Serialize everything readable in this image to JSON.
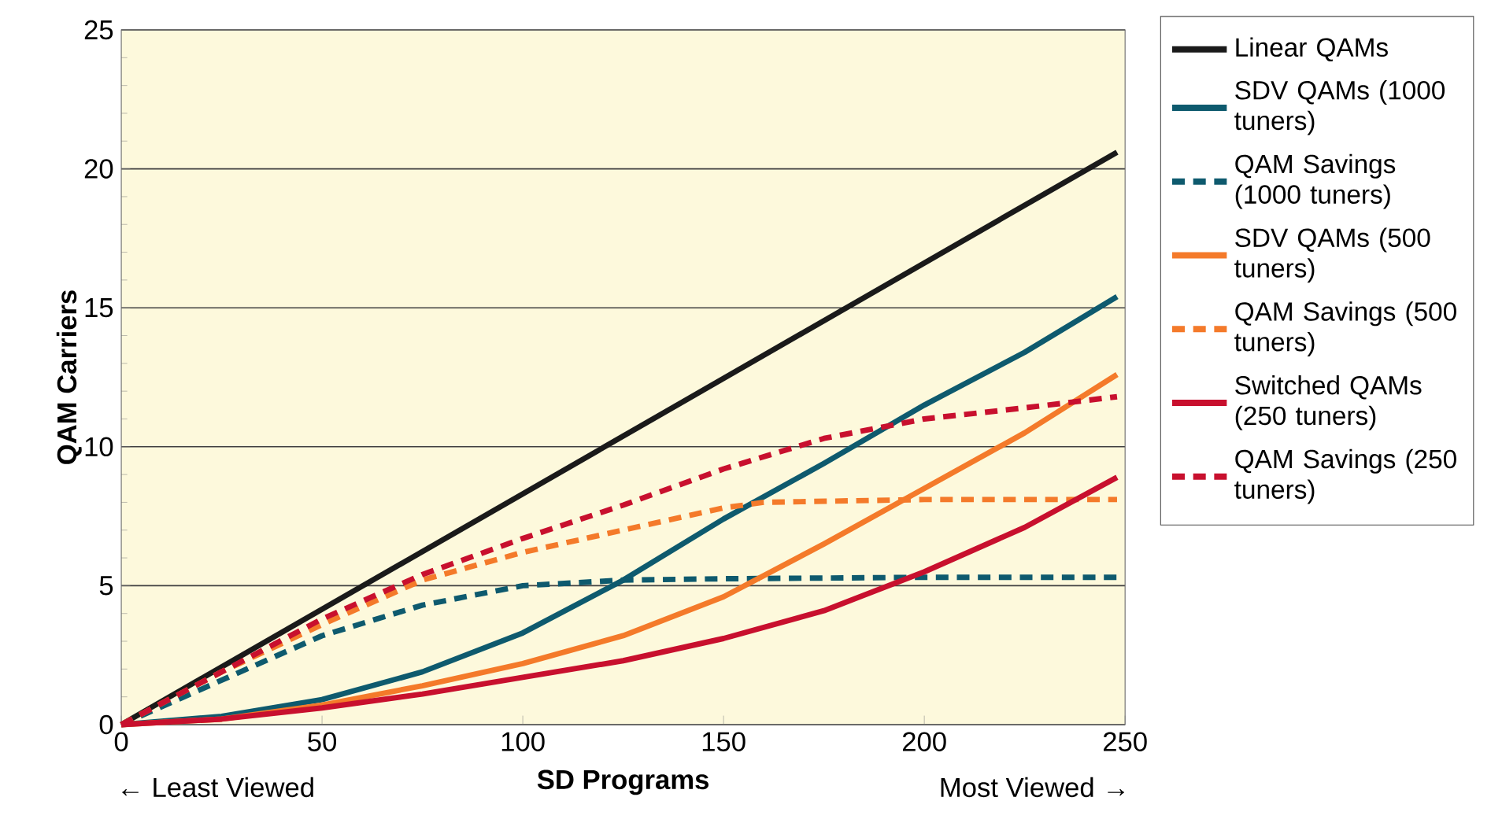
{
  "chart_data": {
    "type": "line",
    "xlabel": "SD Programs",
    "ylabel": "QAM Carriers",
    "annotations": [
      "← Least Viewed",
      "Most Viewed →"
    ],
    "xlim": [
      0,
      250
    ],
    "ylim": [
      0,
      25
    ],
    "xticks": [
      0,
      50,
      100,
      150,
      200,
      250
    ],
    "yticks": [
      0,
      5,
      10,
      15,
      20,
      25
    ],
    "grid": "y",
    "legend": "right",
    "marker": "none",
    "series": [
      {
        "name": "Linear QAMs",
        "color": "#1a1a1a",
        "line_style": "solid",
        "x": [
          0,
          248
        ],
        "values": [
          0,
          20.6
        ]
      },
      {
        "name": "SDV QAMs (1000 tuners)",
        "color": "#0e5a6e",
        "line_style": "solid",
        "x": [
          0,
          25,
          50,
          75,
          100,
          125,
          150,
          175,
          200,
          225,
          248
        ],
        "values": [
          0,
          0.3,
          0.9,
          1.9,
          3.3,
          5.2,
          7.4,
          9.4,
          11.5,
          13.4,
          15.4
        ]
      },
      {
        "name": "QAM Savings (1000 tuners)",
        "color": "#0e5a6e",
        "line_style": "dashed",
        "x": [
          0,
          25,
          50,
          75,
          100,
          125,
          150,
          200,
          248
        ],
        "values": [
          0,
          1.6,
          3.2,
          4.3,
          5.0,
          5.2,
          5.25,
          5.3,
          5.3
        ]
      },
      {
        "name": "SDV QAMs (500 tuners)",
        "color": "#f47a2a",
        "line_style": "solid",
        "x": [
          0,
          25,
          50,
          75,
          100,
          125,
          150,
          175,
          200,
          225,
          248
        ],
        "values": [
          0,
          0.2,
          0.7,
          1.4,
          2.2,
          3.2,
          4.6,
          6.5,
          8.5,
          10.5,
          12.6
        ]
      },
      {
        "name": "QAM Savings (500 tuners)",
        "color": "#f47a2a",
        "line_style": "dashed",
        "x": [
          0,
          25,
          50,
          75,
          100,
          125,
          150,
          160,
          200,
          248
        ],
        "values": [
          0,
          1.9,
          3.6,
          5.2,
          6.2,
          7.0,
          7.8,
          8.0,
          8.1,
          8.1
        ]
      },
      {
        "name": "Switched QAMs (250 tuners)",
        "color": "#c8102e",
        "line_style": "solid",
        "x": [
          0,
          25,
          50,
          75,
          100,
          125,
          150,
          175,
          200,
          225,
          248
        ],
        "values": [
          0,
          0.2,
          0.6,
          1.1,
          1.7,
          2.3,
          3.1,
          4.1,
          5.5,
          7.1,
          8.9
        ]
      },
      {
        "name": "QAM Savings (250 tuners)",
        "color": "#c8102e",
        "line_style": "dashed",
        "x": [
          0,
          25,
          50,
          75,
          100,
          125,
          150,
          175,
          200,
          225,
          248
        ],
        "values": [
          0,
          1.9,
          3.8,
          5.4,
          6.7,
          7.9,
          9.2,
          10.3,
          11.0,
          11.4,
          11.8
        ]
      }
    ]
  }
}
